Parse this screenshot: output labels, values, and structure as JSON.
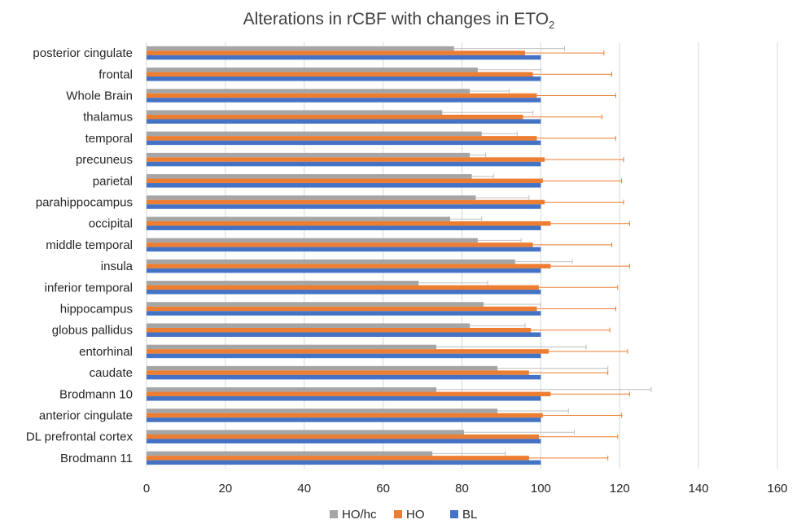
{
  "chart_data": {
    "type": "bar",
    "orientation": "horizontal",
    "title": "Alterations in rCBF with changes in ETO",
    "title_subscript": "2",
    "categories": [
      "posterior cingulate",
      "frontal",
      "Whole Brain",
      "thalamus",
      "temporal",
      "precuneus",
      "parietal",
      "parahippocampus",
      "occipital",
      "middle temporal",
      "insula",
      "inferior temporal",
      "hippocampus",
      "globus pallidus",
      "entorhinal",
      "caudate",
      "Brodmann 10",
      "anterior cingulate",
      "DL prefrontal cortex",
      "Brodmann 11"
    ],
    "series": [
      {
        "name": "HO/hc",
        "color": "#a5a5a5",
        "values": [
          78,
          84,
          82,
          75,
          85,
          82,
          82.5,
          83.5,
          77,
          84,
          93.5,
          69,
          85.5,
          82,
          73.5,
          89,
          73.5,
          89,
          80.5,
          72.5
        ],
        "error": [
          28,
          16,
          10,
          23,
          9,
          4,
          5.5,
          13.5,
          8,
          11,
          14.5,
          17.5,
          14.5,
          14,
          38,
          28,
          54.5,
          18,
          28,
          18.5
        ]
      },
      {
        "name": "HO",
        "color": "#ed7d31",
        "values": [
          96,
          98,
          99,
          95.5,
          99,
          101,
          100.5,
          101,
          102.5,
          98,
          102.5,
          99.5,
          99,
          97.5,
          102,
          97,
          102.5,
          100.5,
          99.5,
          97
        ],
        "error": [
          20,
          20,
          20,
          20,
          20,
          20,
          20,
          20,
          20,
          20,
          20,
          20,
          20,
          20,
          20,
          20,
          20,
          20,
          20,
          20
        ]
      },
      {
        "name": "BL",
        "color": "#4472c4",
        "values": [
          100,
          100,
          100,
          100,
          100,
          100,
          100,
          100,
          100,
          100,
          100,
          100,
          100,
          100,
          100,
          100,
          100,
          100,
          100,
          100
        ]
      }
    ],
    "xlim": [
      0,
      160
    ],
    "xticks": [
      0,
      20,
      40,
      60,
      80,
      100,
      120,
      140,
      160
    ],
    "grid": true,
    "legend_position": "bottom"
  }
}
